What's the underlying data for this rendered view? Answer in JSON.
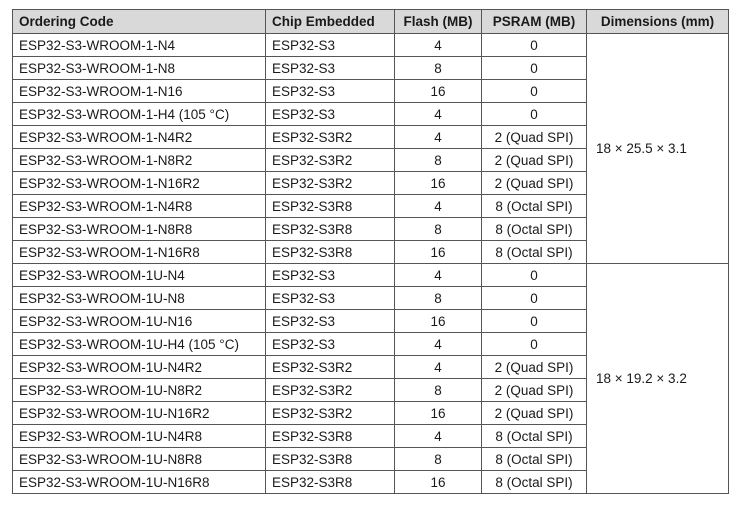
{
  "table": {
    "headers": [
      "Ordering Code",
      "Chip Embedded",
      "Flash (MB)",
      "PSRAM (MB)",
      "Dimensions (mm)"
    ],
    "groups": [
      {
        "dimensions": "18 × 25.5 × 3.1",
        "rows": [
          [
            "ESP32-S3-WROOM-1-N4",
            "ESP32-S3",
            "4",
            "0"
          ],
          [
            "ESP32-S3-WROOM-1-N8",
            "ESP32-S3",
            "8",
            "0"
          ],
          [
            "ESP32-S3-WROOM-1-N16",
            "ESP32-S3",
            "16",
            "0"
          ],
          [
            "ESP32-S3-WROOM-1-H4 (105 °C)",
            "ESP32-S3",
            "4",
            "0"
          ],
          [
            "ESP32-S3-WROOM-1-N4R2",
            "ESP32-S3R2",
            "4",
            "2 (Quad SPI)"
          ],
          [
            "ESP32-S3-WROOM-1-N8R2",
            "ESP32-S3R2",
            "8",
            "2 (Quad SPI)"
          ],
          [
            "ESP32-S3-WROOM-1-N16R2",
            "ESP32-S3R2",
            "16",
            "2 (Quad SPI)"
          ],
          [
            "ESP32-S3-WROOM-1-N4R8",
            "ESP32-S3R8",
            "4",
            "8 (Octal SPI)"
          ],
          [
            "ESP32-S3-WROOM-1-N8R8",
            "ESP32-S3R8",
            "8",
            "8 (Octal SPI)"
          ],
          [
            "ESP32-S3-WROOM-1-N16R8",
            "ESP32-S3R8",
            "16",
            "8 (Octal SPI)"
          ]
        ]
      },
      {
        "dimensions": "18 × 19.2 × 3.2",
        "rows": [
          [
            "ESP32-S3-WROOM-1U-N4",
            "ESP32-S3",
            "4",
            "0"
          ],
          [
            "ESP32-S3-WROOM-1U-N8",
            "ESP32-S3",
            "8",
            "0"
          ],
          [
            "ESP32-S3-WROOM-1U-N16",
            "ESP32-S3",
            "16",
            "0"
          ],
          [
            "ESP32-S3-WROOM-1U-H4 (105 °C)",
            "ESP32-S3",
            "4",
            "0"
          ],
          [
            "ESP32-S3-WROOM-1U-N4R2",
            "ESP32-S3R2",
            "4",
            "2 (Quad SPI)"
          ],
          [
            "ESP32-S3-WROOM-1U-N8R2",
            "ESP32-S3R2",
            "8",
            "2 (Quad SPI)"
          ],
          [
            "ESP32-S3-WROOM-1U-N16R2",
            "ESP32-S3R2",
            "16",
            "2 (Quad SPI)"
          ],
          [
            "ESP32-S3-WROOM-1U-N4R8",
            "ESP32-S3R8",
            "4",
            "8 (Octal SPI)"
          ],
          [
            "ESP32-S3-WROOM-1U-N8R8",
            "ESP32-S3R8",
            "8",
            "8 (Octal SPI)"
          ],
          [
            "ESP32-S3-WROOM-1U-N16R8",
            "ESP32-S3R8",
            "16",
            "8 (Octal SPI)"
          ]
        ]
      }
    ]
  }
}
